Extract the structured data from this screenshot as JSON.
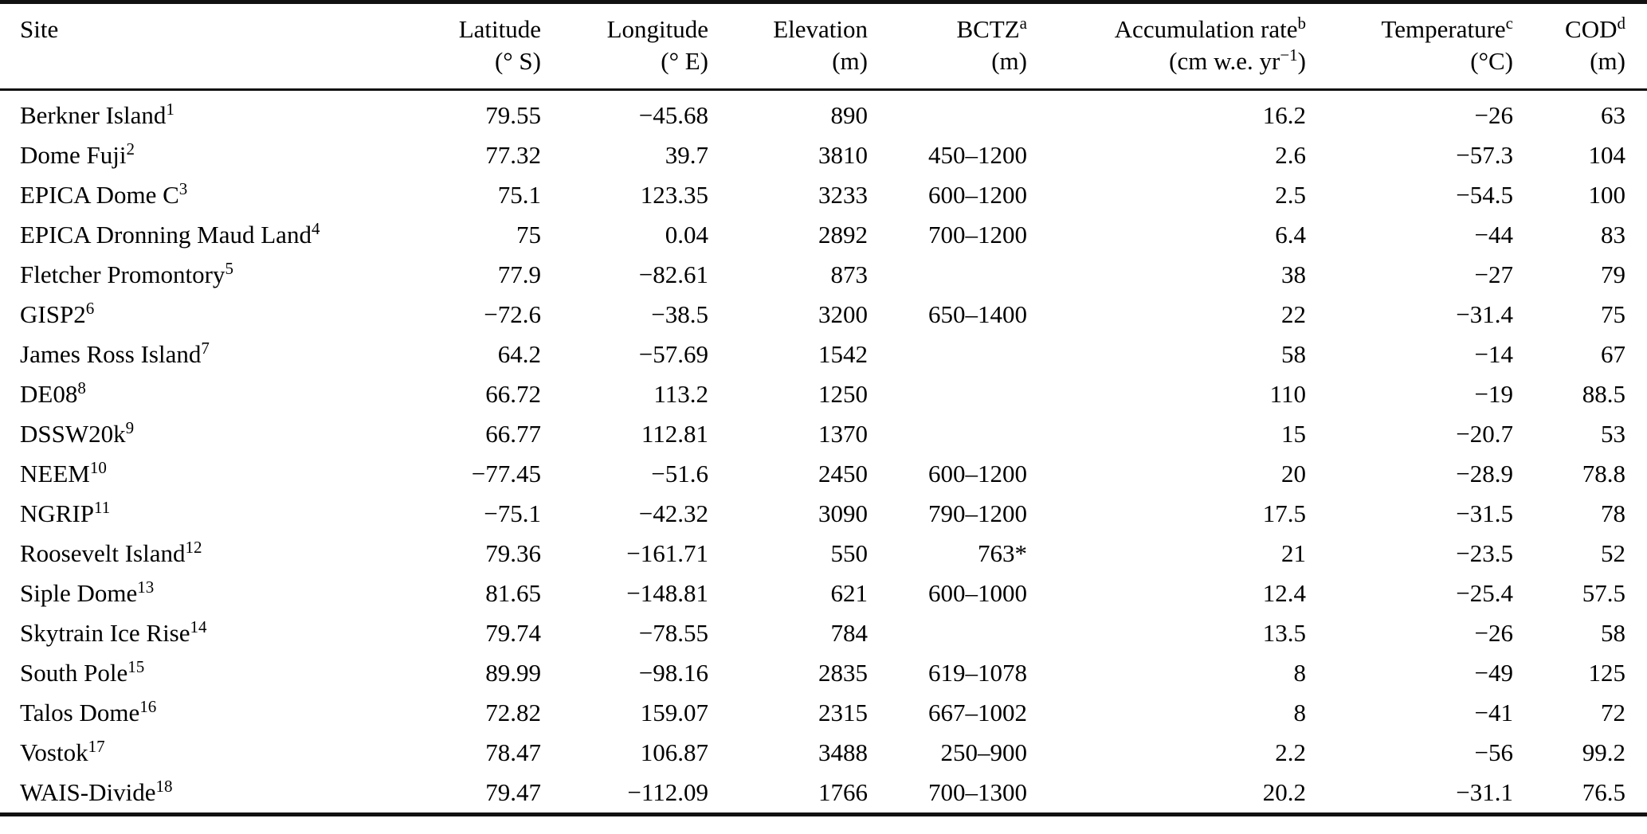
{
  "table": {
    "columns": [
      {
        "key": "site",
        "label": "Site",
        "sup": "",
        "unit_main": "",
        "unit_sup": "",
        "unit_post": ""
      },
      {
        "key": "latitude",
        "label": "Latitude",
        "sup": "",
        "unit_main": "(° S)",
        "unit_sup": "",
        "unit_post": ""
      },
      {
        "key": "longitude",
        "label": "Longitude",
        "sup": "",
        "unit_main": "(° E)",
        "unit_sup": "",
        "unit_post": ""
      },
      {
        "key": "elevation",
        "label": "Elevation",
        "sup": "",
        "unit_main": "(m)",
        "unit_sup": "",
        "unit_post": ""
      },
      {
        "key": "bctz",
        "label": "BCTZ",
        "sup": "a",
        "unit_main": "(m)",
        "unit_sup": "",
        "unit_post": ""
      },
      {
        "key": "accumulation",
        "label": "Accumulation rate",
        "sup": "b",
        "unit_main": "(cm w.e. yr",
        "unit_sup": "−1",
        "unit_post": ")"
      },
      {
        "key": "temperature",
        "label": "Temperature",
        "sup": "c",
        "unit_main": "(°C)",
        "unit_sup": "",
        "unit_post": ""
      },
      {
        "key": "cod",
        "label": "COD",
        "sup": "d",
        "unit_main": "(m)",
        "unit_sup": "",
        "unit_post": ""
      }
    ],
    "rows": [
      {
        "site": "Berkner Island",
        "ref": "1",
        "latitude": "79.55",
        "longitude": "−45.68",
        "elevation": "890",
        "bctz": "",
        "accumulation": "16.2",
        "temperature": "−26",
        "cod": "63"
      },
      {
        "site": "Dome Fuji",
        "ref": "2",
        "latitude": "77.32",
        "longitude": "39.7",
        "elevation": "3810",
        "bctz": "450–1200",
        "accumulation": "2.6",
        "temperature": "−57.3",
        "cod": "104"
      },
      {
        "site": "EPICA Dome C",
        "ref": "3",
        "latitude": "75.1",
        "longitude": "123.35",
        "elevation": "3233",
        "bctz": "600–1200",
        "accumulation": "2.5",
        "temperature": "−54.5",
        "cod": "100"
      },
      {
        "site": "EPICA Dronning Maud Land",
        "ref": "4",
        "latitude": "75",
        "longitude": "0.04",
        "elevation": "2892",
        "bctz": "700–1200",
        "accumulation": "6.4",
        "temperature": "−44",
        "cod": "83"
      },
      {
        "site": "Fletcher Promontory",
        "ref": "5",
        "latitude": "77.9",
        "longitude": "−82.61",
        "elevation": "873",
        "bctz": "",
        "accumulation": "38",
        "temperature": "−27",
        "cod": "79"
      },
      {
        "site": "GISP2",
        "ref": "6",
        "latitude": "−72.6",
        "longitude": "−38.5",
        "elevation": "3200",
        "bctz": "650–1400",
        "accumulation": "22",
        "temperature": "−31.4",
        "cod": "75"
      },
      {
        "site": "James Ross Island",
        "ref": "7",
        "latitude": "64.2",
        "longitude": "−57.69",
        "elevation": "1542",
        "bctz": "",
        "accumulation": "58",
        "temperature": "−14",
        "cod": "67"
      },
      {
        "site": "DE08",
        "ref": "8",
        "latitude": "66.72",
        "longitude": "113.2",
        "elevation": "1250",
        "bctz": "",
        "accumulation": "110",
        "temperature": "−19",
        "cod": "88.5"
      },
      {
        "site": "DSSW20k",
        "ref": "9",
        "latitude": "66.77",
        "longitude": "112.81",
        "elevation": "1370",
        "bctz": "",
        "accumulation": "15",
        "temperature": "−20.7",
        "cod": "53"
      },
      {
        "site": "NEEM",
        "ref": "10",
        "latitude": "−77.45",
        "longitude": "−51.6",
        "elevation": "2450",
        "bctz": "600–1200",
        "accumulation": "20",
        "temperature": "−28.9",
        "cod": "78.8"
      },
      {
        "site": "NGRIP",
        "ref": "11",
        "latitude": "−75.1",
        "longitude": "−42.32",
        "elevation": "3090",
        "bctz": "790–1200",
        "accumulation": "17.5",
        "temperature": "−31.5",
        "cod": "78"
      },
      {
        "site": "Roosevelt Island",
        "ref": "12",
        "latitude": "79.36",
        "longitude": "−161.71",
        "elevation": "550",
        "bctz": "763*",
        "accumulation": "21",
        "temperature": "−23.5",
        "cod": "52"
      },
      {
        "site": "Siple Dome",
        "ref": "13",
        "latitude": "81.65",
        "longitude": "−148.81",
        "elevation": "621",
        "bctz": "600–1000",
        "accumulation": "12.4",
        "temperature": "−25.4",
        "cod": "57.5"
      },
      {
        "site": "Skytrain Ice Rise",
        "ref": "14",
        "latitude": "79.74",
        "longitude": "−78.55",
        "elevation": "784",
        "bctz": "",
        "accumulation": "13.5",
        "temperature": "−26",
        "cod": "58"
      },
      {
        "site": "South Pole",
        "ref": "15",
        "latitude": "89.99",
        "longitude": "−98.16",
        "elevation": "2835",
        "bctz": "619–1078",
        "accumulation": "8",
        "temperature": "−49",
        "cod": "125"
      },
      {
        "site": "Talos Dome",
        "ref": "16",
        "latitude": "72.82",
        "longitude": "159.07",
        "elevation": "2315",
        "bctz": "667–1002",
        "accumulation": "8",
        "temperature": "−41",
        "cod": "72"
      },
      {
        "site": "Vostok",
        "ref": "17",
        "latitude": "78.47",
        "longitude": "106.87",
        "elevation": "3488",
        "bctz": "250–900",
        "accumulation": "2.2",
        "temperature": "−56",
        "cod": "99.2"
      },
      {
        "site": "WAIS-Divide",
        "ref": "18",
        "latitude": "79.47",
        "longitude": "−112.09",
        "elevation": "1766",
        "bctz": "700–1300",
        "accumulation": "20.2",
        "temperature": "−31.1",
        "cod": "76.5"
      }
    ]
  }
}
